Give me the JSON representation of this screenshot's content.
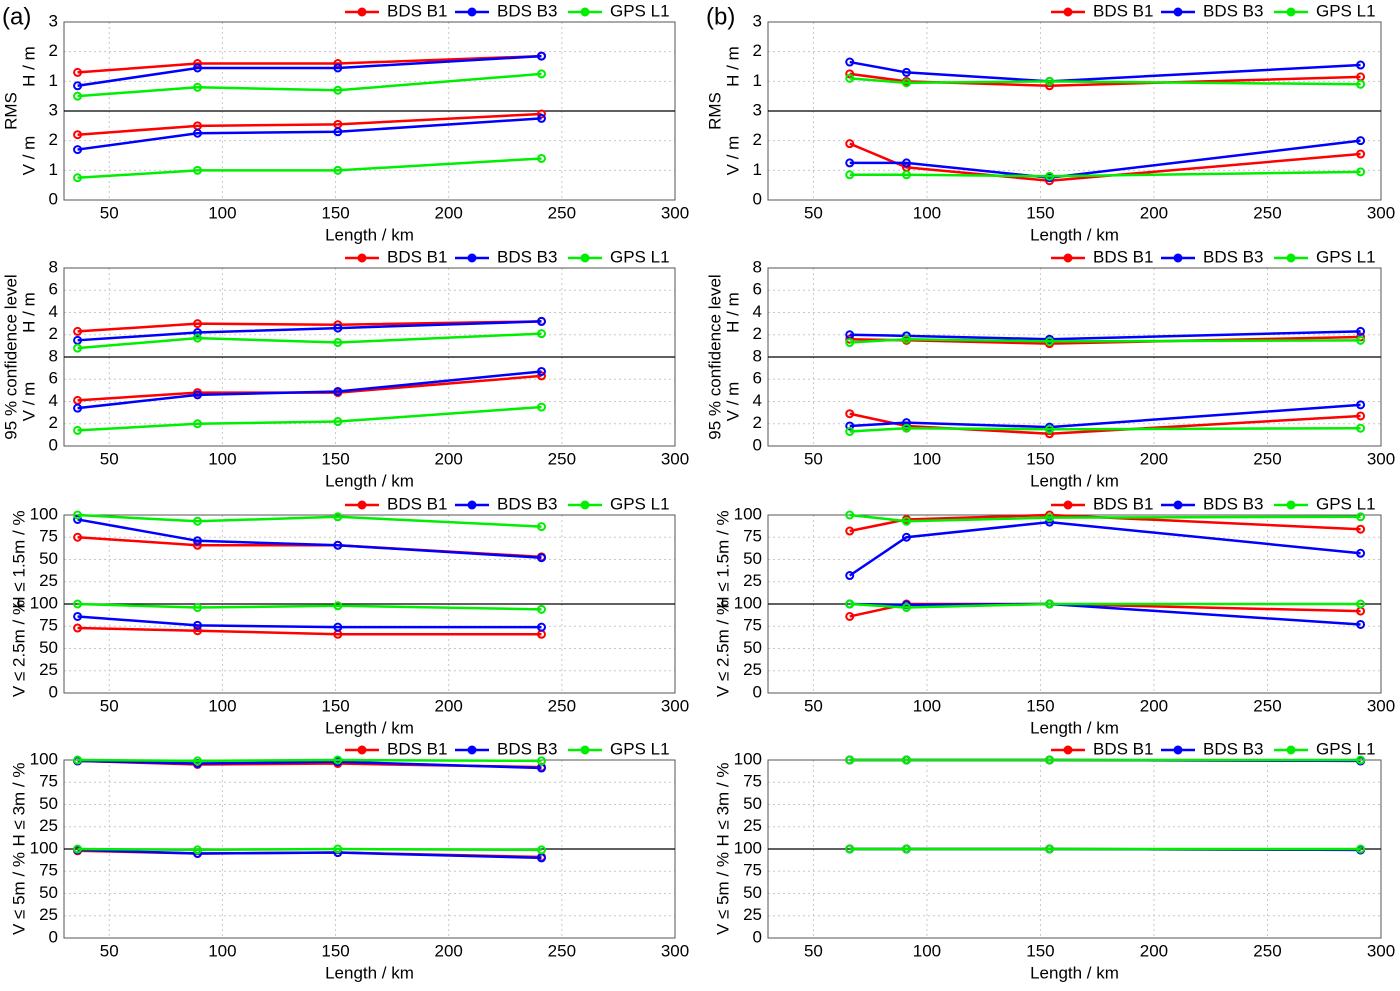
{
  "chart_data": [
    {
      "type": "line",
      "panel_label": "(a)",
      "group_label": "RMS",
      "xlabel": "Length / km",
      "x": [
        36,
        89,
        151,
        241
      ],
      "xlim": [
        30,
        300
      ],
      "xticks": [
        50,
        100,
        150,
        200,
        250,
        300
      ],
      "series": [
        {
          "name": "BDS B1",
          "color": "#ff0000"
        },
        {
          "name": "BDS B3",
          "color": "#0000ff"
        },
        {
          "name": "GPS L1",
          "color": "#00ee00"
        }
      ],
      "subplots": [
        {
          "ylabel": "H / m",
          "ylim": [
            0,
            3
          ],
          "yticks": [
            1,
            2,
            3
          ],
          "series": [
            {
              "values": [
                1.3,
                1.6,
                1.6,
                1.85
              ]
            },
            {
              "values": [
                0.85,
                1.45,
                1.45,
                1.85
              ]
            },
            {
              "values": [
                0.5,
                0.8,
                0.7,
                1.25
              ]
            }
          ]
        },
        {
          "ylabel": "V / m",
          "ylim": [
            0,
            3
          ],
          "yticks": [
            0,
            1,
            2,
            3
          ],
          "series": [
            {
              "values": [
                2.2,
                2.5,
                2.55,
                2.9
              ]
            },
            {
              "values": [
                1.7,
                2.25,
                2.3,
                2.75
              ]
            },
            {
              "values": [
                0.75,
                1.0,
                1.0,
                1.4
              ]
            }
          ]
        }
      ]
    },
    {
      "type": "line",
      "group_label": "95 % confidence level",
      "xlabel": "Length / km",
      "x": [
        36,
        89,
        151,
        241
      ],
      "xlim": [
        30,
        300
      ],
      "xticks": [
        50,
        100,
        150,
        200,
        250,
        300
      ],
      "series": [
        {
          "name": "BDS B1",
          "color": "#ff0000"
        },
        {
          "name": "BDS B3",
          "color": "#0000ff"
        },
        {
          "name": "GPS L1",
          "color": "#00ee00"
        }
      ],
      "subplots": [
        {
          "ylabel": "H / m",
          "ylim": [
            0,
            8
          ],
          "yticks": [
            2,
            4,
            6,
            8
          ],
          "series": [
            {
              "values": [
                2.3,
                3.0,
                2.9,
                3.2
              ]
            },
            {
              "values": [
                1.5,
                2.2,
                2.6,
                3.2
              ]
            },
            {
              "values": [
                0.8,
                1.7,
                1.3,
                2.1
              ]
            }
          ]
        },
        {
          "ylabel": "V / m",
          "ylim": [
            0,
            8
          ],
          "yticks": [
            0,
            2,
            4,
            6,
            8
          ],
          "series": [
            {
              "values": [
                4.1,
                4.8,
                4.8,
                6.3
              ]
            },
            {
              "values": [
                3.4,
                4.6,
                4.9,
                6.7
              ]
            },
            {
              "values": [
                1.4,
                2.0,
                2.2,
                3.5
              ]
            }
          ]
        }
      ]
    },
    {
      "type": "line",
      "xlabel": "Length / km",
      "x": [
        36,
        89,
        151,
        241
      ],
      "xlim": [
        30,
        300
      ],
      "xticks": [
        50,
        100,
        150,
        200,
        250,
        300
      ],
      "series": [
        {
          "name": "BDS B1",
          "color": "#ff0000"
        },
        {
          "name": "BDS B3",
          "color": "#0000ff"
        },
        {
          "name": "GPS L1",
          "color": "#00ee00"
        }
      ],
      "subplots": [
        {
          "ylabel": "H ≤ 1.5m / %",
          "ylim": [
            0,
            100
          ],
          "yticks": [
            25,
            50,
            75,
            100
          ],
          "series": [
            {
              "values": [
                75,
                66,
                66,
                53
              ]
            },
            {
              "values": [
                95,
                71,
                66,
                52
              ]
            },
            {
              "values": [
                100,
                93,
                98,
                87
              ]
            }
          ]
        },
        {
          "ylabel": "V ≤ 2.5m / %",
          "ylim": [
            0,
            100
          ],
          "yticks": [
            0,
            25,
            50,
            75,
            100
          ],
          "series": [
            {
              "values": [
                73,
                70,
                66,
                66
              ]
            },
            {
              "values": [
                86,
                76,
                74,
                74
              ]
            },
            {
              "values": [
                100,
                96,
                98,
                94
              ]
            }
          ]
        }
      ]
    },
    {
      "type": "line",
      "xlabel": "Length / km",
      "x": [
        36,
        89,
        151,
        241
      ],
      "xlim": [
        30,
        300
      ],
      "xticks": [
        50,
        100,
        150,
        200,
        250,
        300
      ],
      "series": [
        {
          "name": "BDS B1",
          "color": "#ff0000"
        },
        {
          "name": "BDS B3",
          "color": "#0000ff"
        },
        {
          "name": "GPS L1",
          "color": "#00ee00"
        }
      ],
      "subplots": [
        {
          "ylabel": "H ≤ 3m / %",
          "ylim": [
            0,
            100
          ],
          "yticks": [
            25,
            50,
            75,
            100
          ],
          "series": [
            {
              "values": [
                99,
                95,
                96,
                92
              ]
            },
            {
              "values": [
                99,
                96,
                98,
                91
              ]
            },
            {
              "values": [
                100,
                99,
                100,
                99
              ]
            }
          ]
        },
        {
          "ylabel": "V ≤ 5m / %",
          "ylim": [
            0,
            100
          ],
          "yticks": [
            0,
            25,
            50,
            75,
            100
          ],
          "series": [
            {
              "values": [
                98,
                95,
                96,
                91
              ]
            },
            {
              "values": [
                99,
                95,
                96,
                90
              ]
            },
            {
              "values": [
                100,
                99,
                100,
                99
              ]
            }
          ]
        }
      ]
    },
    {
      "type": "line",
      "panel_label": "(b)",
      "group_label": "RMS",
      "xlabel": "Length / km",
      "x": [
        66,
        91,
        154,
        291
      ],
      "xlim": [
        30,
        300
      ],
      "xticks": [
        50,
        100,
        150,
        200,
        250,
        300
      ],
      "series": [
        {
          "name": "BDS B1",
          "color": "#ff0000"
        },
        {
          "name": "BDS B3",
          "color": "#0000ff"
        },
        {
          "name": "GPS L1",
          "color": "#00ee00"
        }
      ],
      "subplots": [
        {
          "ylabel": "H / m",
          "ylim": [
            0,
            3
          ],
          "yticks": [
            1,
            2,
            3
          ],
          "series": [
            {
              "values": [
                1.25,
                1.0,
                0.85,
                1.15
              ]
            },
            {
              "values": [
                1.65,
                1.3,
                1.0,
                1.55
              ]
            },
            {
              "values": [
                1.1,
                0.95,
                1.0,
                0.9
              ]
            }
          ]
        },
        {
          "ylabel": "V / m",
          "ylim": [
            0,
            3
          ],
          "yticks": [
            0,
            1,
            2,
            3
          ],
          "series": [
            {
              "values": [
                1.9,
                1.1,
                0.65,
                1.55
              ]
            },
            {
              "values": [
                1.25,
                1.25,
                0.75,
                2.0
              ]
            },
            {
              "values": [
                0.85,
                0.85,
                0.8,
                0.95
              ]
            }
          ]
        }
      ]
    },
    {
      "type": "line",
      "group_label": "95 % confidence level",
      "xlabel": "Length / km",
      "x": [
        66,
        91,
        154,
        291
      ],
      "xlim": [
        30,
        300
      ],
      "xticks": [
        50,
        100,
        150,
        200,
        250,
        300
      ],
      "series": [
        {
          "name": "BDS B1",
          "color": "#ff0000"
        },
        {
          "name": "BDS B3",
          "color": "#0000ff"
        },
        {
          "name": "GPS L1",
          "color": "#00ee00"
        }
      ],
      "subplots": [
        {
          "ylabel": "H / m",
          "ylim": [
            0,
            8
          ],
          "yticks": [
            2,
            4,
            6,
            8
          ],
          "series": [
            {
              "values": [
                1.6,
                1.5,
                1.2,
                1.8
              ]
            },
            {
              "values": [
                2.0,
                1.9,
                1.6,
                2.3
              ]
            },
            {
              "values": [
                1.3,
                1.6,
                1.4,
                1.5
              ]
            }
          ]
        },
        {
          "ylabel": "V / m",
          "ylim": [
            0,
            8
          ],
          "yticks": [
            0,
            2,
            4,
            6,
            8
          ],
          "series": [
            {
              "values": [
                2.9,
                1.8,
                1.1,
                2.7
              ]
            },
            {
              "values": [
                1.8,
                2.1,
                1.7,
                3.7
              ]
            },
            {
              "values": [
                1.3,
                1.6,
                1.5,
                1.6
              ]
            }
          ]
        }
      ]
    },
    {
      "type": "line",
      "xlabel": "Length / km",
      "x": [
        66,
        91,
        154,
        291
      ],
      "xlim": [
        30,
        300
      ],
      "xticks": [
        50,
        100,
        150,
        200,
        250,
        300
      ],
      "series": [
        {
          "name": "BDS B1",
          "color": "#ff0000"
        },
        {
          "name": "BDS B3",
          "color": "#0000ff"
        },
        {
          "name": "GPS L1",
          "color": "#00ee00"
        }
      ],
      "subplots": [
        {
          "ylabel": "H ≤ 1.5m / %",
          "ylim": [
            0,
            100
          ],
          "yticks": [
            25,
            50,
            75,
            100
          ],
          "series": [
            {
              "values": [
                82,
                95,
                100,
                84
              ]
            },
            {
              "values": [
                32,
                75,
                92,
                57
              ]
            },
            {
              "values": [
                100,
                93,
                97,
                98
              ]
            }
          ]
        },
        {
          "ylabel": "V ≤ 2.5m / %",
          "ylim": [
            0,
            100
          ],
          "yticks": [
            0,
            25,
            50,
            75,
            100
          ],
          "series": [
            {
              "values": [
                86,
                100,
                100,
                92
              ]
            },
            {
              "values": [
                100,
                99,
                100,
                77
              ]
            },
            {
              "values": [
                100,
                96,
                100,
                100
              ]
            }
          ]
        }
      ]
    },
    {
      "type": "line",
      "xlabel": "Length / km",
      "x": [
        66,
        91,
        154,
        291
      ],
      "xlim": [
        30,
        300
      ],
      "xticks": [
        50,
        100,
        150,
        200,
        250,
        300
      ],
      "series": [
        {
          "name": "BDS B1",
          "color": "#ff0000"
        },
        {
          "name": "BDS B3",
          "color": "#0000ff"
        },
        {
          "name": "GPS L1",
          "color": "#00ee00"
        }
      ],
      "subplots": [
        {
          "ylabel": "H ≤ 3m / %",
          "ylim": [
            0,
            100
          ],
          "yticks": [
            25,
            50,
            75,
            100
          ],
          "series": [
            {
              "values": [
                100,
                100,
                100,
                99
              ]
            },
            {
              "values": [
                100,
                100,
                100,
                99
              ]
            },
            {
              "values": [
                100,
                100,
                100,
                100
              ]
            }
          ]
        },
        {
          "ylabel": "V ≤ 5m / %",
          "ylim": [
            0,
            100
          ],
          "yticks": [
            0,
            25,
            50,
            75,
            100
          ],
          "series": [
            {
              "values": [
                100,
                100,
                100,
                99
              ]
            },
            {
              "values": [
                100,
                100,
                100,
                99
              ]
            },
            {
              "values": [
                100,
                100,
                100,
                100
              ]
            }
          ]
        }
      ]
    }
  ]
}
